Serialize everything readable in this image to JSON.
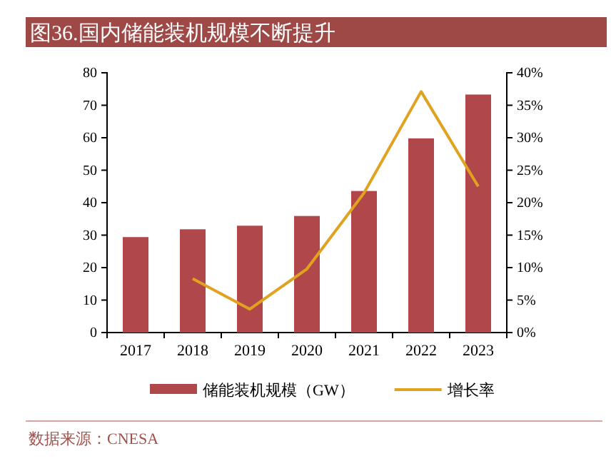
{
  "chart_data": {
    "type": "bar",
    "title": "图36.国内储能装机规模不断提升",
    "categories": [
      "2017",
      "2018",
      "2019",
      "2020",
      "2021",
      "2022",
      "2023"
    ],
    "series": [
      {
        "name": "储能装机规模（GW）",
        "color": "#b0474a",
        "values": [
          29.4,
          31.8,
          32.9,
          35.9,
          43.6,
          59.8,
          73.3
        ]
      },
      {
        "name": "增长率",
        "type": "line",
        "axis": "y2",
        "color": "#e0a21f",
        "values": [
          null,
          8.3,
          3.6,
          9.8,
          21.5,
          37.1,
          22.5
        ]
      }
    ],
    "ylim": [
      0,
      80
    ],
    "yticks": [
      0,
      10,
      20,
      30,
      40,
      50,
      60,
      70,
      80
    ],
    "y2lim": [
      0,
      40
    ],
    "y2ticks": [
      {
        "value": 0,
        "label": "0%"
      },
      {
        "value": 5,
        "label": "5%"
      },
      {
        "value": 10,
        "label": "10%"
      },
      {
        "value": 15,
        "label": "15%"
      },
      {
        "value": 20,
        "label": "20%"
      },
      {
        "value": 25,
        "label": "25%"
      },
      {
        "value": 30,
        "label": "30%"
      },
      {
        "value": 35,
        "label": "35%"
      },
      {
        "value": 40,
        "label": "40%"
      }
    ],
    "legend": "bottom",
    "annotations": [
      "数据来源：CNESA"
    ]
  }
}
